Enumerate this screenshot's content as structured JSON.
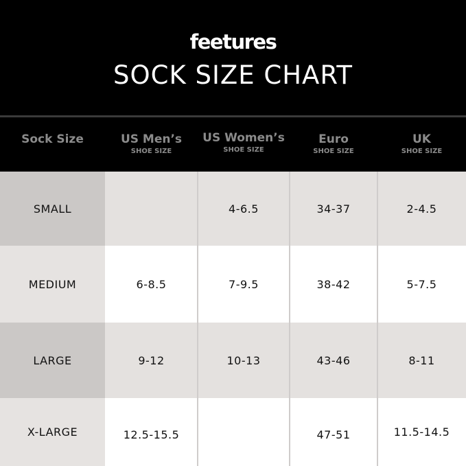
{
  "brand": "feetures",
  "title": "SOCK SIZE CHART",
  "headers": [
    {
      "main": "Sock Size",
      "sub": ""
    },
    {
      "main": "US Men’s",
      "sub": "SHOE SIZE"
    },
    {
      "main": "US Women’s",
      "sub": "SHOE SIZE"
    },
    {
      "main": "Euro",
      "sub": "SHOE SIZE"
    },
    {
      "main": "UK",
      "sub": "SHOE SIZE"
    }
  ],
  "rows": [
    [
      "SMALL",
      "",
      "4-6.5",
      "34-37",
      "2-4.5"
    ],
    [
      "MEDIUM",
      "6-8.5",
      "7-9.5",
      "38-42",
      "5-7.5"
    ],
    [
      "LARGE",
      "9-12",
      "10-13",
      "43-46",
      "8-11"
    ],
    [
      "X-LARGE",
      "12.5-15.5",
      "",
      "47-51",
      "11.5-14.5"
    ]
  ],
  "colors": {
    "header_bg": "#000000",
    "header_text": "#8b8b8b",
    "row_gray": "#e4e1df",
    "row_white": "#ffffff",
    "first_col_dark": "#cbc8c6",
    "first_col_light": "#e6e3e1"
  }
}
